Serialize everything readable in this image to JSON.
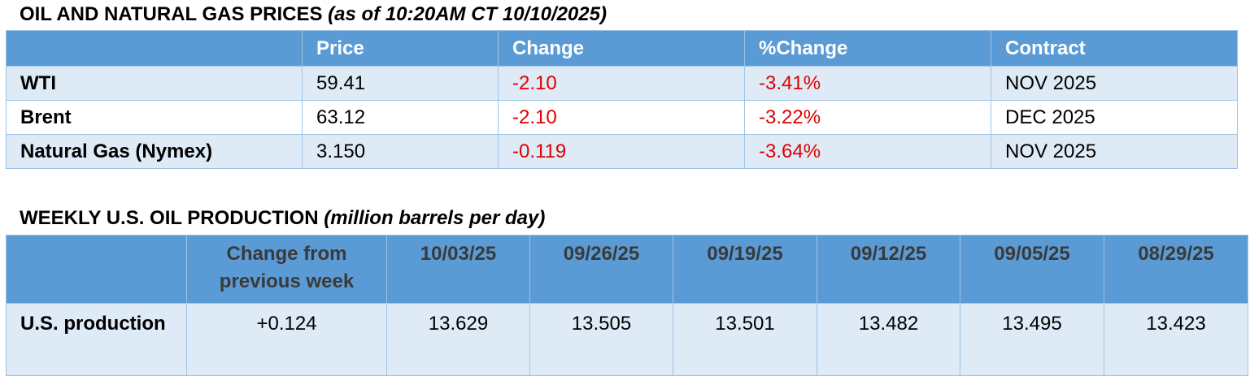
{
  "prices": {
    "title": "OIL AND NATURAL GAS PRICES",
    "subtitle": "(as of 10:20AM CT 10/10/2025)",
    "header": [
      "Price",
      "Change",
      "%Change",
      "Contract"
    ],
    "rows": [
      [
        "WTI",
        "59.41",
        "-2.10",
        "-3.41%",
        "NOV 2025"
      ],
      [
        "Brent",
        "63.12",
        "-2.10",
        "-3.22%",
        "DEC 2025"
      ],
      [
        "Natural Gas (Nymex)",
        "3.150",
        "-0.119",
        "-3.64%",
        "NOV 2025"
      ]
    ]
  },
  "production": {
    "title": "WEEKLY U.S. OIL PRODUCTION",
    "subtitle": "(million barrels per day)",
    "header": [
      "Change from previous week",
      "10/03/25",
      "09/26/25",
      "09/19/25",
      "09/12/25",
      "09/05/25",
      "08/29/25"
    ],
    "rows": [
      [
        "U.S. production",
        "+0.124",
        "13.629",
        "13.505",
        "13.501",
        "13.482",
        "13.495",
        "13.423"
      ]
    ]
  }
}
